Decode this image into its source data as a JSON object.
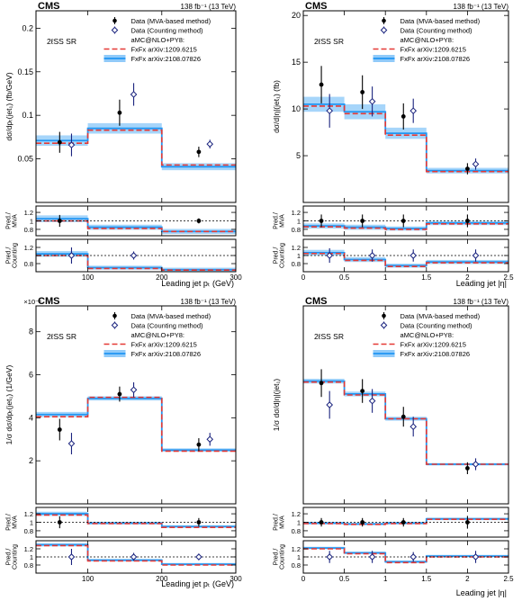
{
  "colors": {
    "data_mva": "#000000",
    "data_counting": "#1a237e",
    "pred_2021": "#2196f3",
    "pred_2021_band": "#90caf9",
    "pred_2012": "#e53935"
  },
  "chart_data": [
    {
      "id": "tl",
      "type": "line",
      "cms": "CMS",
      "lumi": "138 fb⁻¹ (13 TeV)",
      "region": "2ℓSS SR",
      "ylabel": "dσ/dpₜ(jet₁) (fb/GeV)",
      "xlabel": "Leading jet pₜ (GeV)",
      "exponent": "",
      "legend": {
        "mva": "Data (MVA-based method)",
        "counting": "Data (Counting method)",
        "header": "aMC@NLO+PY8:",
        "p2012": "FxFx arXiv:1209.6215",
        "p2021": "FxFx arXiv:2108.07826"
      },
      "xlim": [
        30,
        300
      ],
      "ylim": [
        0,
        0.22
      ],
      "xticks": [
        100,
        200,
        300
      ],
      "xticklabels": [
        "100",
        "200",
        "300"
      ],
      "yticks": [
        0.05,
        0.1,
        0.15,
        0.2
      ],
      "yticklabels": [
        "0.05",
        "0.1",
        "0.15",
        "0.2"
      ],
      "bins": [
        30,
        100,
        200,
        300
      ],
      "pred_2021": [
        0.071,
        0.085,
        0.041
      ],
      "pred_2021_err": [
        0.006,
        0.006,
        0.004
      ],
      "pred_2012": [
        0.068,
        0.083,
        0.043
      ],
      "mva_x": [
        62,
        143,
        250
      ],
      "mva_y": [
        0.069,
        0.103,
        0.058
      ],
      "mva_err": [
        0.012,
        0.015,
        0.006
      ],
      "cnt_x": [
        78,
        162,
        265
      ],
      "cnt_y": [
        0.066,
        0.124,
        0.067
      ],
      "cnt_err": [
        0.013,
        0.013,
        0.005
      ],
      "ratio1": {
        "label": [
          "Pred./",
          "MVA"
        ],
        "ylim": [
          0.65,
          1.35
        ],
        "yticks": [
          0.8,
          1,
          1.2
        ],
        "yticklabels": [
          "0.8",
          "1",
          "1.2"
        ],
        "r2021": [
          1.05,
          0.85,
          0.75
        ],
        "r2021_err": [
          0.08,
          0.06,
          0.06
        ],
        "r2012": [
          1.0,
          0.82,
          0.75
        ],
        "pts_x": [
          62,
          250
        ],
        "pts_y": [
          1.0,
          1.0
        ],
        "pts_err": [
          0.14,
          0.06
        ]
      },
      "ratio2": {
        "label": [
          "Pred./",
          "Counting"
        ],
        "ylim": [
          0.6,
          1.4
        ],
        "yticks": [
          0.8,
          1,
          1.2
        ],
        "yticklabels": [
          "0.8",
          "",
          "1.2"
        ],
        "r2021": [
          1.04,
          0.7,
          0.65
        ],
        "r2021_err": [
          0.07,
          0.05,
          0.05
        ],
        "r2012": [
          1.0,
          0.68,
          0.64
        ],
        "pts_x": [
          78,
          162
        ],
        "pts_y": [
          1.0,
          1.0
        ],
        "pts_err": [
          0.2,
          0.1
        ]
      }
    },
    {
      "id": "tr",
      "type": "line",
      "cms": "CMS",
      "lumi": "138 fb⁻¹ (13 TeV)",
      "region": "2ℓSS SR",
      "ylabel": "dσ/d|η|(jet₁) (fb)",
      "xlabel": "Leading jet |η|",
      "exponent": "",
      "legend": {
        "mva": "Data (MVA-based method)",
        "counting": "Data (Counting method)",
        "header": "aMC@NLO+PY8:",
        "p2012": "FxFx arXiv:1209.6215",
        "p2021": "FxFx arXiv:2108.07826"
      },
      "xlim": [
        0,
        2.5
      ],
      "ylim": [
        0,
        20.5
      ],
      "xticks": [
        0,
        0.5,
        1,
        1.5,
        2,
        2.5
      ],
      "xticklabels": [
        "0",
        "0.5",
        "1",
        "1.5",
        "2",
        "2.5"
      ],
      "yticks": [
        5,
        10,
        15,
        20
      ],
      "yticklabels": [
        "5",
        "10",
        "15",
        "20"
      ],
      "bins": [
        0,
        0.5,
        1.0,
        1.5,
        2.5
      ],
      "pred_2021": [
        10.5,
        9.7,
        7.4,
        3.4
      ],
      "pred_2021_err": [
        0.8,
        0.8,
        0.6,
        0.3
      ],
      "pred_2012": [
        10.3,
        9.5,
        7.2,
        3.3
      ],
      "mva_x": [
        0.22,
        0.72,
        1.22,
        2.0
      ],
      "mva_y": [
        12.6,
        11.8,
        9.2,
        3.6
      ],
      "mva_err": [
        2.0,
        1.8,
        1.4,
        0.6
      ],
      "cnt_x": [
        0.32,
        0.84,
        1.34,
        2.1
      ],
      "cnt_y": [
        9.8,
        10.8,
        9.8,
        4.1
      ],
      "cnt_err": [
        1.8,
        1.6,
        1.3,
        0.6
      ],
      "ratio1": {
        "label": [
          "Pred./",
          "MVA"
        ],
        "ylim": [
          0.65,
          1.35
        ],
        "yticks": [
          0.8,
          1,
          1.2
        ],
        "yticklabels": [
          "0.8",
          "1",
          "1.2"
        ],
        "r2021": [
          0.88,
          0.85,
          0.82,
          0.95
        ],
        "r2021_err": [
          0.06,
          0.06,
          0.05,
          0.05
        ],
        "r2012": [
          0.86,
          0.83,
          0.8,
          0.93
        ],
        "pts_x": [
          0.22,
          0.72,
          1.22,
          2.0
        ],
        "pts_y": [
          1.0,
          1.0,
          1.0,
          1.0
        ],
        "pts_err": [
          0.15,
          0.15,
          0.15,
          0.15
        ]
      },
      "ratio2": {
        "label": [
          "Pred./",
          "Counting"
        ],
        "ylim": [
          0.6,
          1.4
        ],
        "yticks": [
          0.8,
          1,
          1.2
        ],
        "yticklabels": [
          "0.8",
          "1",
          "1.2"
        ],
        "r2021": [
          1.07,
          0.9,
          0.75,
          0.84
        ],
        "r2021_err": [
          0.07,
          0.06,
          0.05,
          0.05
        ],
        "r2012": [
          1.05,
          0.88,
          0.73,
          0.82
        ],
        "pts_x": [
          0.32,
          0.84,
          1.34,
          2.1
        ],
        "pts_y": [
          1.0,
          1.0,
          1.0,
          1.0
        ],
        "pts_err": [
          0.18,
          0.15,
          0.15,
          0.15
        ]
      }
    },
    {
      "id": "bl",
      "type": "line",
      "cms": "CMS",
      "lumi": "138 fb⁻¹ (13 TeV)",
      "region": "2ℓSS SR",
      "ylabel": "1/σ dσ/dpₜ(jet₁) (1/GeV)",
      "xlabel": "Leading jet pₜ (GeV)",
      "exponent": "×10⁻³",
      "legend": {
        "mva": "Data (MVA-based method)",
        "counting": "Data (Counting method)",
        "header": "aMC@NLO+PY8:",
        "p2012": "FxFx arXiv:1209.6215",
        "p2021": "FxFx arXiv:2108.07826"
      },
      "xlim": [
        30,
        300
      ],
      "ylim": [
        0,
        9.2
      ],
      "xticks": [
        100,
        200,
        300
      ],
      "xticklabels": [
        "100",
        "200",
        "300"
      ],
      "yticks": [
        2,
        4,
        6,
        8
      ],
      "yticklabels": [
        "2",
        "4",
        "6",
        "8"
      ],
      "bins": [
        30,
        100,
        200,
        300
      ],
      "pred_2021": [
        4.15,
        4.9,
        2.5
      ],
      "pred_2021_err": [
        0.12,
        0.1,
        0.08
      ],
      "pred_2012": [
        4.05,
        4.95,
        2.45
      ],
      "mva_x": [
        62,
        143,
        250
      ],
      "mva_y": [
        3.45,
        5.1,
        2.75
      ],
      "mva_err": [
        0.5,
        0.35,
        0.3
      ],
      "cnt_x": [
        78,
        162,
        265
      ],
      "cnt_y": [
        2.8,
        5.3,
        3.0
      ],
      "cnt_err": [
        0.5,
        0.35,
        0.3
      ],
      "ratio1": {
        "label": [
          "Pred./",
          "MVA"
        ],
        "ylim": [
          0.65,
          1.35
        ],
        "yticks": [
          0.8,
          1,
          1.2
        ],
        "yticklabels": [
          "0.8",
          "1",
          "1.2"
        ],
        "r2021": [
          1.2,
          0.98,
          0.9
        ],
        "r2021_err": [
          0.05,
          0.03,
          0.03
        ],
        "r2012": [
          1.17,
          0.97,
          0.88
        ],
        "pts_x": [
          62,
          250
        ],
        "pts_y": [
          1.0,
          1.0
        ],
        "pts_err": [
          0.14,
          0.1
        ]
      },
      "ratio2": {
        "label": [
          "Pred./",
          "Counting"
        ],
        "ylim": [
          0.6,
          1.4
        ],
        "yticks": [
          0.8,
          1,
          1.2
        ],
        "yticklabels": [
          "0.8",
          "1",
          "1.2"
        ],
        "r2021": [
          1.3,
          0.92,
          0.82
        ],
        "r2021_err": [
          0.04,
          0.03,
          0.03
        ],
        "r2012": [
          1.28,
          0.9,
          0.8
        ],
        "pts_x": [
          78,
          162,
          250
        ],
        "pts_y": [
          1.0,
          1.0,
          1.0
        ],
        "pts_err": [
          0.2,
          0.1,
          0.08
        ]
      }
    },
    {
      "id": "br",
      "type": "line",
      "cms": "CMS",
      "lumi": "138 fb⁻¹ (13 TeV)",
      "region": "2ℓSS SR",
      "ylabel": "1/σ dσ/d|η|(jet₁)",
      "xlabel": "Leading jet |η|",
      "exponent": "",
      "legend": {
        "mva": "Data (MVA-based method)",
        "counting": "Data (Counting method)",
        "header": "aMC@NLO+PY8:",
        "p2012": "FxFx arXiv:1209.6215",
        "p2021": "FxFx arXiv:2108.07826"
      },
      "xlim": [
        0,
        2.5
      ],
      "ylim": [
        0,
        1.0
      ],
      "xticks": [
        0,
        0.5,
        1,
        1.5,
        2,
        2.5
      ],
      "xticklabels": [
        "0",
        "0.5",
        "1",
        "1.5",
        "2",
        "2.5"
      ],
      "yticks": [],
      "yticklabels": [],
      "bins": [
        0,
        0.5,
        1.0,
        1.5,
        2.5
      ],
      "pred_2021": [
        0.62,
        0.555,
        0.43,
        0.2
      ],
      "pred_2021_err": [
        0.012,
        0.012,
        0.01,
        0.006
      ],
      "pred_2012": [
        0.615,
        0.55,
        0.43,
        0.2
      ],
      "mva_x": [
        0.22,
        0.72,
        1.22,
        2.0
      ],
      "mva_y": [
        0.61,
        0.57,
        0.44,
        0.18
      ],
      "mva_err": [
        0.07,
        0.06,
        0.05,
        0.03
      ],
      "cnt_x": [
        0.32,
        0.84,
        1.34,
        2.1
      ],
      "cnt_y": [
        0.5,
        0.52,
        0.39,
        0.2
      ],
      "cnt_err": [
        0.07,
        0.06,
        0.05,
        0.03
      ],
      "ratio1": {
        "label": [
          "Pred./",
          "MVA"
        ],
        "ylim": [
          0.65,
          1.35
        ],
        "yticks": [
          0.8,
          1,
          1.2
        ],
        "yticklabels": [
          "0.8",
          "1",
          "1.2"
        ],
        "r2021": [
          0.98,
          0.96,
          0.98,
          1.08
        ],
        "r2021_err": [
          0.03,
          0.03,
          0.03,
          0.03
        ],
        "r2012": [
          0.97,
          0.95,
          0.97,
          1.07
        ],
        "pts_x": [
          0.22,
          0.72,
          1.22,
          2.0
        ],
        "pts_y": [
          1.0,
          1.0,
          1.0,
          1.0
        ],
        "pts_err": [
          0.1,
          0.1,
          0.1,
          0.15
        ]
      },
      "ratio2": {
        "label": [
          "Pred./",
          "Counting"
        ],
        "ylim": [
          0.6,
          1.4
        ],
        "yticks": [
          0.8,
          1,
          1.2
        ],
        "yticklabels": [
          "0.8",
          "1",
          "1.2"
        ],
        "r2021": [
          1.22,
          1.1,
          0.88,
          1.02
        ],
        "r2021_err": [
          0.03,
          0.03,
          0.03,
          0.03
        ],
        "r2012": [
          1.2,
          1.08,
          0.86,
          1.0
        ],
        "pts_x": [
          0.32,
          0.84,
          1.34,
          2.1
        ],
        "pts_y": [
          1.0,
          1.0,
          1.0,
          1.0
        ],
        "pts_err": [
          0.15,
          0.15,
          0.12,
          0.15
        ]
      }
    }
  ]
}
